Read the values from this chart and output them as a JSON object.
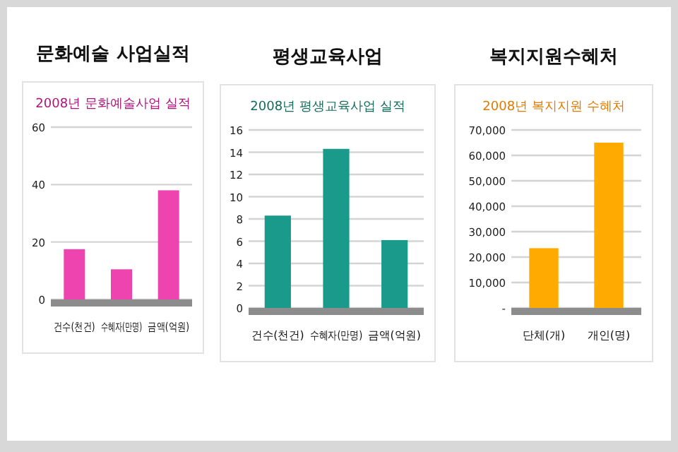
{
  "chart_data": [
    {
      "type": "bar",
      "title": "문화예술 사업실적",
      "subtitle": "2008년 문화예술사업 실적",
      "categories": [
        "건수(천건)",
        "수혜자(만명)",
        "금액(억원)"
      ],
      "values": [
        17.5,
        10.5,
        38
      ],
      "color": "#ee44b0",
      "ylim": [
        0,
        60
      ],
      "yticks": [
        0,
        20,
        40,
        60
      ],
      "grid": "y"
    },
    {
      "type": "bar",
      "title": "평생교육사업",
      "subtitle": "2008년 평생교육사업 실적",
      "categories": [
        "건수(천건)",
        "수혜자(만명)",
        "금액(억원)"
      ],
      "values": [
        8.3,
        14.3,
        6.1
      ],
      "color": "#1a9a8a",
      "ylim": [
        0,
        16
      ],
      "yticks": [
        0,
        2,
        4,
        6,
        8,
        10,
        12,
        14,
        16
      ],
      "grid": "y"
    },
    {
      "type": "bar",
      "title": "복지지원수혜처",
      "subtitle": "2008년 복지지원 수혜처",
      "categories": [
        "단체(개)",
        "개인(명)"
      ],
      "values": [
        23500,
        65000
      ],
      "color": "#ffaa00",
      "ylim": [
        0,
        70000
      ],
      "yticks": [
        {
          "value": 0,
          "label": "-"
        },
        {
          "value": 10000,
          "label": "10,000"
        },
        {
          "value": 20000,
          "label": "20,000"
        },
        {
          "value": 30000,
          "label": "30,000"
        },
        {
          "value": 40000,
          "label": "40,000"
        },
        {
          "value": 50000,
          "label": "50,000"
        },
        {
          "value": 60000,
          "label": "60,000"
        },
        {
          "value": 70000,
          "label": "70,000"
        }
      ],
      "grid": "y"
    }
  ]
}
